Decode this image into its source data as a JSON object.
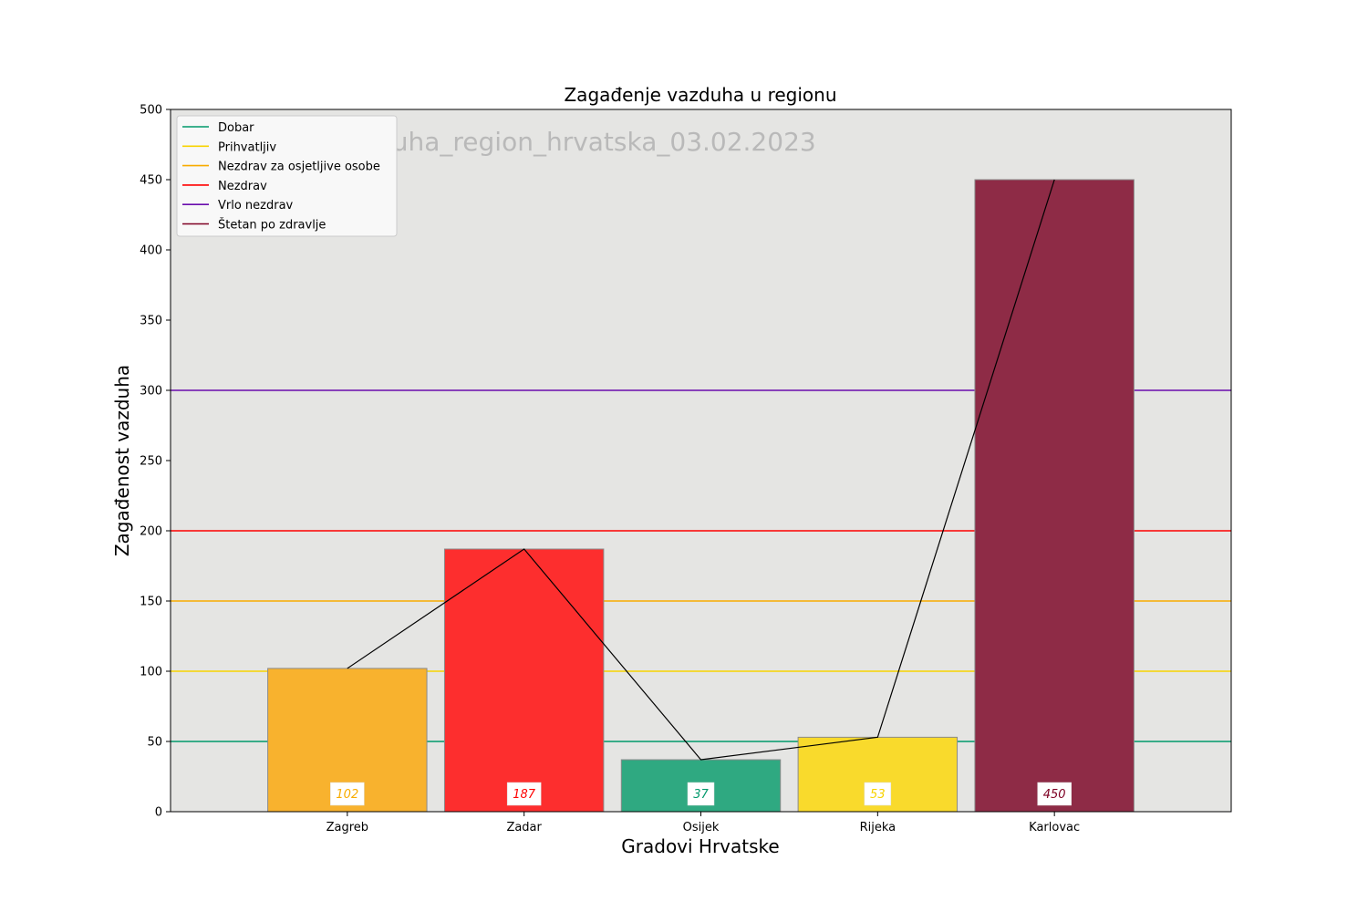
{
  "chart_data": {
    "type": "bar",
    "title": "Zagađenje vazduha u regionu",
    "xlabel": "Gradovi Hrvatske",
    "ylabel": "Zagađenost vazduha",
    "watermark": "zagađenje_vazduha_region_hrvatska_03.02.2023",
    "ylim": [
      0,
      500
    ],
    "yticks": [
      0,
      50,
      100,
      150,
      200,
      250,
      300,
      350,
      400,
      450,
      500
    ],
    "xlim": [
      -1,
      5
    ],
    "categories": [
      "Zagreb",
      "Zadar",
      "Osijek",
      "Rijeka",
      "Karlovac"
    ],
    "values": [
      102,
      187,
      37,
      53,
      450
    ],
    "bar_colors": [
      "#f8b22e",
      "#fd2e2e",
      "#2fa981",
      "#f9da2c",
      "#8e2b46"
    ],
    "label_colors": [
      "#f8ac00",
      "#ff0000",
      "#00996b",
      "#f8d300",
      "#7e0023"
    ],
    "value_labels": [
      "102",
      "187",
      "37",
      "53",
      "450"
    ],
    "line_series": {
      "values": [
        102,
        187,
        37,
        53,
        450
      ],
      "color": "#000000"
    },
    "thresholds": [
      {
        "name": "Dobar",
        "value": 50,
        "color": "#00996b"
      },
      {
        "name": "Prihvatljiv",
        "value": 100,
        "color": "#f8d300"
      },
      {
        "name": "Nezdrav za osjetljive osobe",
        "value": 150,
        "color": "#f8ac00"
      },
      {
        "name": "Nezdrav",
        "value": 200,
        "color": "#ff0000"
      },
      {
        "name": "Vrlo nezdrav",
        "value": 300,
        "color": "#6a0dad"
      },
      {
        "name": "Štetan po zdravlje",
        "value": null,
        "color": "#7e0023"
      }
    ],
    "legend_position": "top-left",
    "background": "#e5e5e3",
    "grid": false
  }
}
